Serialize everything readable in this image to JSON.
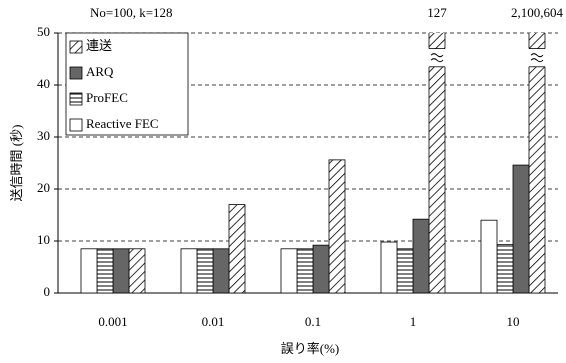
{
  "chart_data": {
    "type": "bar",
    "subtitle": "No=100, k=128",
    "xlabel": "誤り率(%)",
    "ylabel": "送信時間 (秒)",
    "categories": [
      "0.001",
      "0.01",
      "0.1",
      "1",
      "10"
    ],
    "series": [
      {
        "name": "連送",
        "color": "#ffffff",
        "pattern": "diagonal",
        "values": [
          8.5,
          17,
          25.6,
          127,
          2100604
        ],
        "value_labels": [
          null,
          null,
          null,
          "127",
          "2,100,604"
        ]
      },
      {
        "name": "ARQ",
        "color": "#666666",
        "pattern": "solid",
        "values": [
          8.5,
          8.5,
          9.2,
          14.2,
          24.6
        ]
      },
      {
        "name": "ProFEC",
        "color": "#ffffff",
        "pattern": "horizontal",
        "values": [
          8.5,
          8.5,
          8.5,
          8.5,
          9.3
        ]
      },
      {
        "name": "Reactive FEC",
        "color": "#ffffff",
        "pattern": "solid",
        "values": [
          8.5,
          8.5,
          8.5,
          9.8,
          14
        ]
      }
    ],
    "ylim": [
      0,
      50
    ],
    "yticks": [
      0,
      10,
      20,
      30,
      40,
      50
    ],
    "grid": true,
    "legend": "upper left"
  }
}
